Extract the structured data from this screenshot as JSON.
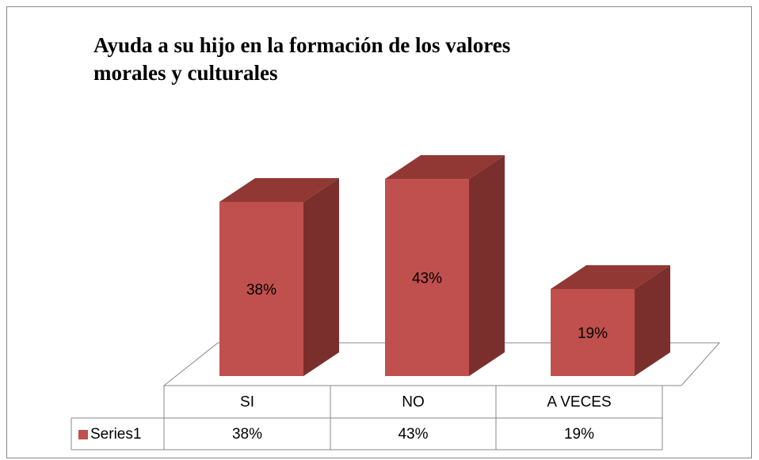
{
  "chart_data": {
    "type": "bar3d",
    "title": "Ayuda a su hijo en la formación de los valores morales y culturales",
    "categories": [
      "SI",
      "NO",
      "A VECES"
    ],
    "series": [
      {
        "name": "Series1",
        "color": "#c0504d",
        "values": [
          38,
          43,
          19
        ],
        "value_labels": [
          "38%",
          "43%",
          "19%"
        ]
      }
    ],
    "data_table": true
  }
}
